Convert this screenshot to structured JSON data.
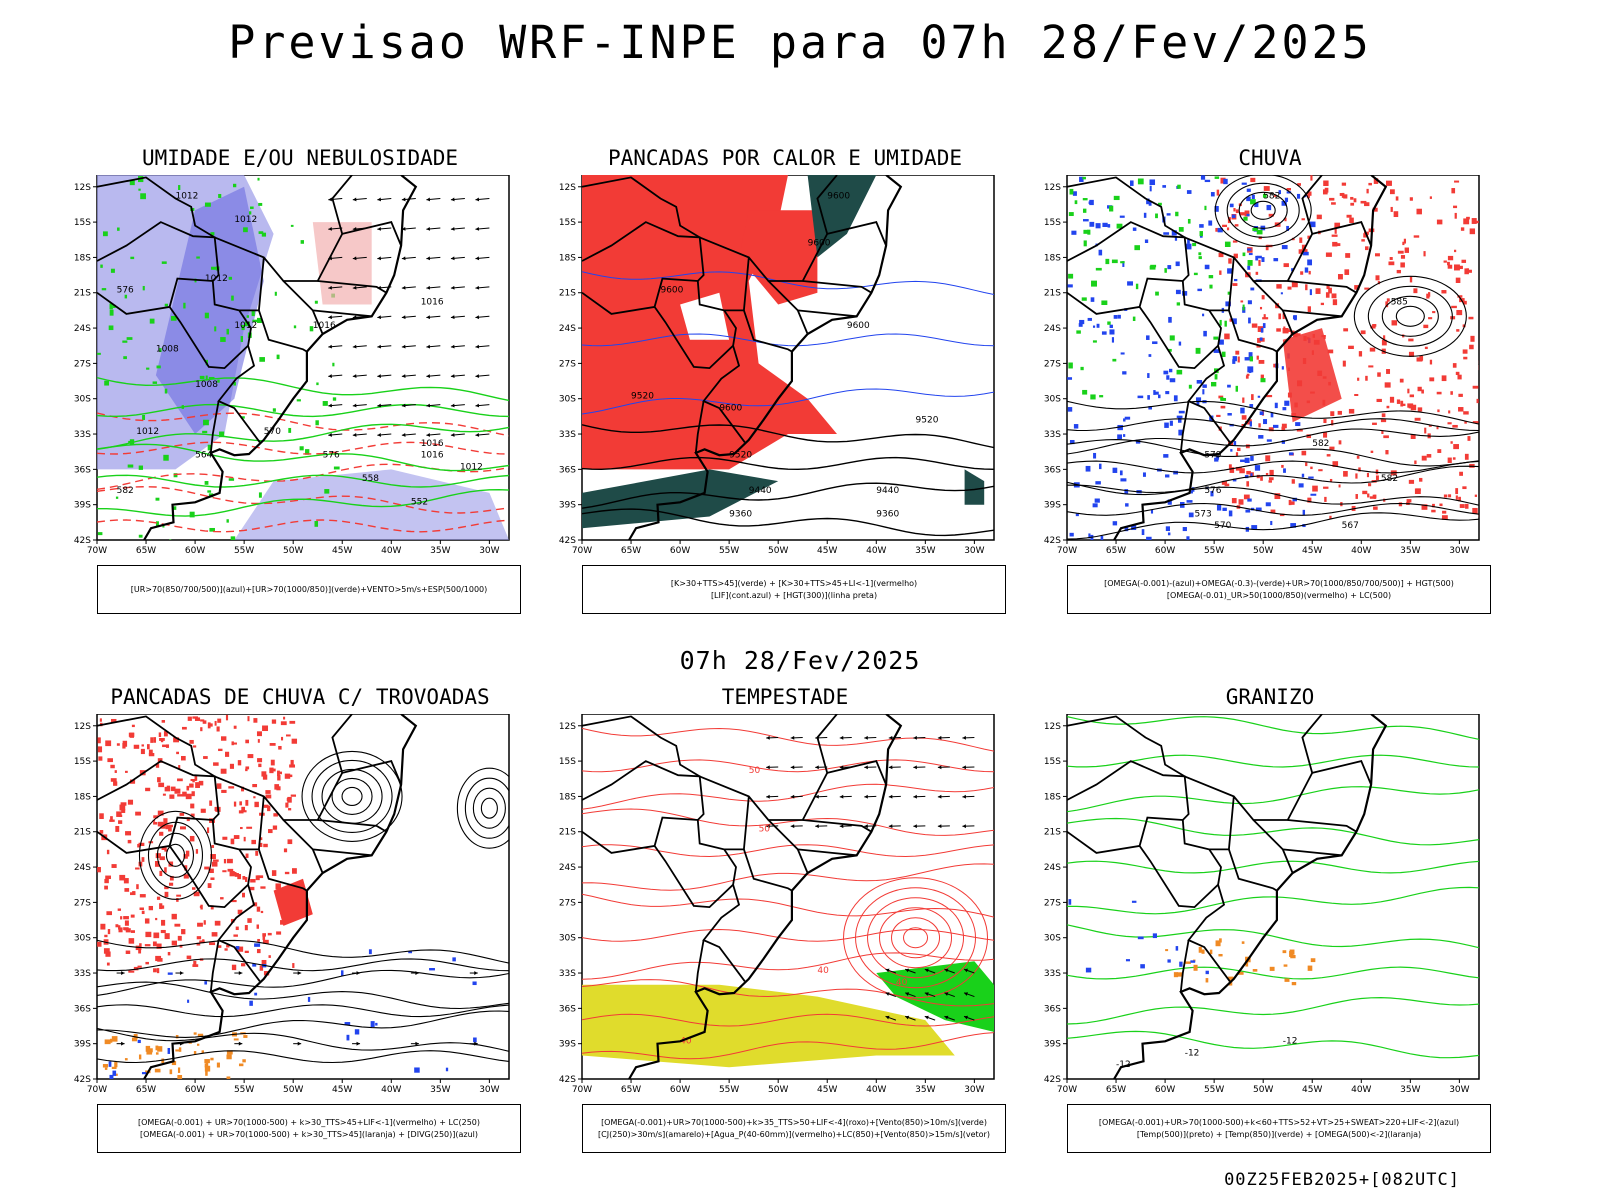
{
  "header": {
    "title": "Previsao WRF-INPE  para 07h 28/Fev/2025"
  },
  "middle": {
    "title": "07h 28/Fev/2025"
  },
  "footer": {
    "run_label": "00Z25FEB2025+[082UTC]"
  },
  "axes": {
    "lat_ticks": [
      "12S",
      "15S",
      "18S",
      "21S",
      "24S",
      "27S",
      "30S",
      "33S",
      "36S",
      "39S",
      "42S"
    ],
    "lon_ticks": [
      "70W",
      "65W",
      "60W",
      "55W",
      "50W",
      "45W",
      "40W",
      "35W",
      "30W"
    ]
  },
  "colors": {
    "red": "#f23b36",
    "green": "#19d11a",
    "blue": "#2244ee",
    "lavender": "#9b9be8",
    "yellow": "#e0dc2c",
    "dark_green": "#1f4b48",
    "orange": "#f08a24"
  },
  "panels": [
    {
      "title": "UMIDADE E/OU NEBULOSIDADE",
      "legend": [
        "[UR>70(850/700/500)](azul)+[UR>70(1000/850)](verde)+VENTO>5m/s+ESP(500/1000)"
      ],
      "labels": [
        "1012",
        "1012",
        "1012",
        "1016",
        "1016",
        "1012",
        "1008",
        "1008",
        "1012",
        "1016",
        "1016",
        "1012",
        "570",
        "576",
        "564",
        "558",
        "552",
        "582",
        "576"
      ]
    },
    {
      "title": "PANCADAS POR CALOR E UMIDADE",
      "legend": [
        "[K>30+TTS>45](verde)  +  [K>30+TTS>45+LI<-1](vermelho)",
        "[LIF](cont.azul)  +  [HGT(300)](linha preta)"
      ],
      "labels": [
        "9600",
        "9600",
        "9600",
        "9600",
        "9600",
        "9520",
        "9520",
        "9440",
        "9440",
        "9360",
        "9360",
        "9520"
      ]
    },
    {
      "title": "CHUVA",
      "legend": [
        "[OMEGA(-0.001)-(azul)+OMEGA(-0.3)-(verde)+UR>70(1000/850/700/500)]  +  HGT(500)",
        "[OMEGA(-0.01)_UR>50(1000/850)(vermelho) + LC(500)"
      ],
      "labels": [
        "582",
        "585",
        "582",
        "582",
        "579",
        "576",
        "573",
        "570",
        "567"
      ]
    },
    {
      "title": "PANCADAS DE CHUVA C/ TROVOADAS",
      "legend": [
        "[OMEGA(-0.001) + UR>70(1000-500) + k>30_TTS>45+LIF<-1](vermelho) + LC(250)",
        "[OMEGA(-0.001) + UR>70(1000-500) + k>30_TTS>45](laranja) + [DIVG(250)](azul)"
      ],
      "labels": []
    },
    {
      "title": "TEMPESTADE",
      "legend": [
        "[OMEGA(-0.001)+UR>70(1000-500)+k>35_TTS>50+LIF<-4](roxo)+[Vento(850)>10m/s](verde)",
        "[CJ(250)>30m/s](amarelo)+[Agua_P(40-60mm)](vermelho)+LC(850)+[Vento(850)>15m/s](vetor)"
      ],
      "labels": [
        "50",
        "40",
        "40",
        "40",
        "50"
      ]
    },
    {
      "title": "GRANIZO",
      "legend": [
        "[OMEGA(-0.001)+UR>70(1000-500)+k<60+TTS>52+VT>25+SWEAT>220+LIF<-2](azul)",
        "[Temp(500)](preto) + [Temp(850)](verde) + [OMEGA(500)<-2](laranja)"
      ],
      "labels": [
        "-12",
        "-12",
        "-12"
      ]
    }
  ]
}
